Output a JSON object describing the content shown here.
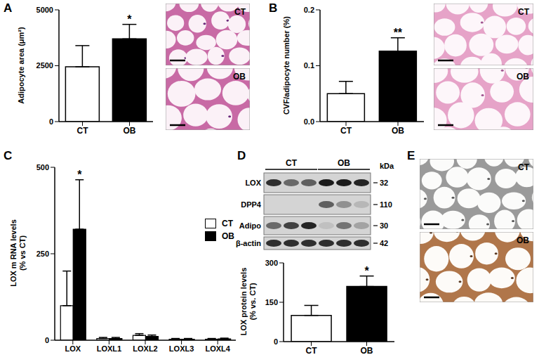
{
  "chart_data": [
    {
      "type": "bar",
      "panel": "A",
      "categories": [
        "CT",
        "OB"
      ],
      "values": [
        2450,
        3700
      ],
      "errors": [
        950,
        650
      ],
      "colors": [
        "#ffffff",
        "#000000"
      ],
      "ylabel": "Adipocyte area (μm²)",
      "ylim": [
        0,
        5000
      ],
      "yticks": [
        0,
        2500,
        5000
      ],
      "annotations": [
        {
          "category": "OB",
          "text": "*"
        }
      ]
    },
    {
      "type": "bar",
      "panel": "B",
      "categories": [
        "CT",
        "OB"
      ],
      "values": [
        0.05,
        0.126
      ],
      "errors": [
        0.022,
        0.024
      ],
      "colors": [
        "#ffffff",
        "#000000"
      ],
      "ylabel": "CVF/adipocyte number (%)",
      "ylim": [
        0,
        0.2
      ],
      "yticks": [
        {
          "value": 0,
          "label": "0.0"
        },
        0.1,
        0.2
      ],
      "annotations": [
        {
          "category": "OB",
          "text": "**"
        }
      ]
    },
    {
      "type": "bar",
      "panel": "C",
      "categories": [
        "LOX",
        "LOXL1",
        "LOXL2",
        "LOXL3",
        "LOXL4"
      ],
      "series": [
        {
          "name": "CT",
          "color": "#ffffff",
          "values": [
            100,
            5,
            14,
            3,
            3
          ],
          "errors": [
            100,
            3,
            5,
            2,
            2
          ]
        },
        {
          "name": "OB",
          "color": "#000000",
          "values": [
            321,
            5,
            11,
            3,
            4
          ],
          "errors": [
            143,
            3,
            4,
            2,
            2
          ]
        }
      ],
      "ylabel": [
        "LOX m RNA levels",
        "(% vs CT)"
      ],
      "ylim": [
        0,
        500
      ],
      "yticks": [
        0,
        250,
        500
      ],
      "legend": "right",
      "annotations": [
        {
          "category": "LOX",
          "series": "OB",
          "text": "*"
        }
      ]
    },
    {
      "type": "bar",
      "categories": [
        "CT",
        "OB"
      ],
      "values": [
        100,
        210
      ],
      "errors": [
        38,
        40
      ],
      "colors": [
        "#ffffff",
        "#000000"
      ],
      "ylabel": [
        "LOX protein levels",
        "(% vs. CT)"
      ],
      "ylim": [
        0,
        300
      ],
      "yticks": [
        0,
        150,
        300
      ],
      "annotations": [
        {
          "category": "OB",
          "text": "*"
        }
      ]
    }
  ],
  "images": [
    {
      "panel": "A",
      "labels": [
        "CT",
        "OB"
      ]
    },
    {
      "panel": "B",
      "labels": [
        "CT",
        "OB"
      ]
    },
    {
      "panel": "E",
      "labels": [
        "CT",
        "OB"
      ]
    }
  ],
  "blot": {
    "panel": "D",
    "groups": [
      "CT",
      "OB"
    ],
    "unit": "kDa",
    "rows": [
      {
        "label": "LOX",
        "kda": 32
      },
      {
        "label": "DPP4",
        "kda": 110
      },
      {
        "label": "Adipo",
        "kda": 30
      },
      {
        "label": "β-actin",
        "kda": 42
      }
    ]
  }
}
